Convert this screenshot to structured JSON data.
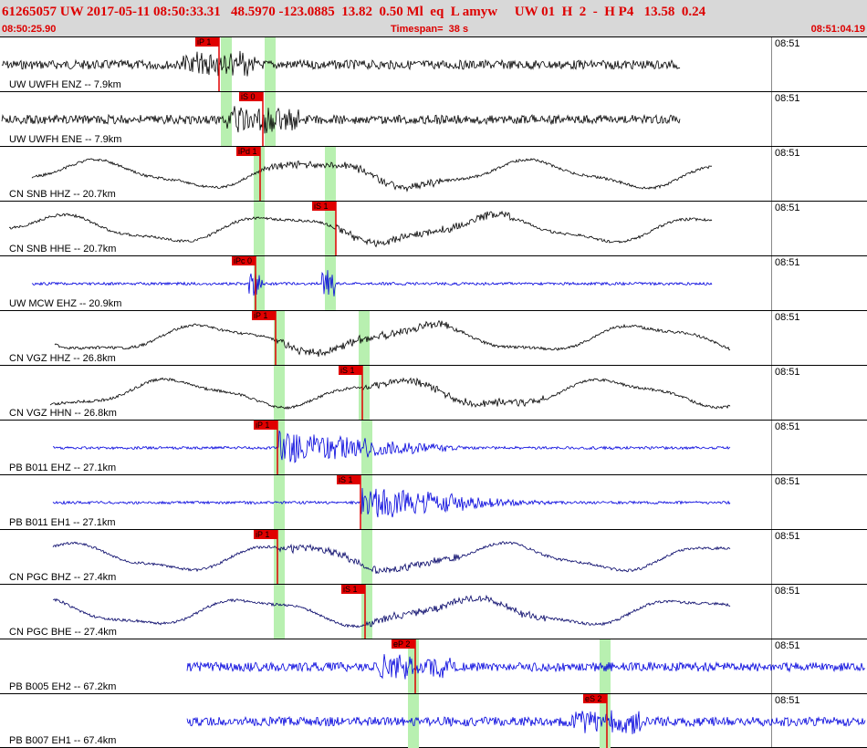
{
  "header": {
    "event_summary": "61265057 UW 2017-05-11 08:50:33.31   48.5970 -123.0885  13.82  0.50 Ml  eq  L amyw     UW 01  H  2  -  H P4   13.58  0.24",
    "start_time": "08:50:25.90",
    "timespan": "Timespan=  38 s",
    "end_time": "08:51:04.19"
  },
  "colors": {
    "header_text": "#dd0000",
    "pick_bg": "#e00000",
    "window_bg": "#b8f0b0",
    "wave_blue": "#0000dd",
    "wave_black": "#000000"
  },
  "traces": [
    {
      "label": "UW UWFH ENZ -- 7.9km",
      "time": "08:51",
      "color": "#000000",
      "kind": "noise",
      "pick": "iP 1"
    },
    {
      "label": "UW UWFH ENE -- 7.9km",
      "time": "08:51",
      "color": "#000000",
      "kind": "noise",
      "pick": "iS 0"
    },
    {
      "label": "CN SNB HHZ -- 20.7km",
      "time": "08:51",
      "color": "#000000",
      "kind": "wave",
      "pick": "iPd 1"
    },
    {
      "label": "CN SNB HHE -- 20.7km",
      "time": "08:51",
      "color": "#000000",
      "kind": "wave",
      "pick": "iS 1"
    },
    {
      "label": "UW MCW EHZ -- 20.9km",
      "time": "08:51",
      "color": "#0000dd",
      "kind": "flat",
      "pick": "iPc 0"
    },
    {
      "label": "CN VGZ HHZ -- 26.8km",
      "time": "08:51",
      "color": "#000000",
      "kind": "wave",
      "pick": "iP 1"
    },
    {
      "label": "CN VGZ HHN -- 26.8km",
      "time": "08:51",
      "color": "#000000",
      "kind": "wave",
      "pick": "iS 1"
    },
    {
      "label": "PB B011 EHZ -- 27.1km",
      "time": "08:51",
      "color": "#0000dd",
      "kind": "burst",
      "pick": "iP 1"
    },
    {
      "label": "PB B011 EH1 -- 27.1km",
      "time": "08:51",
      "color": "#0000dd",
      "kind": "burst",
      "pick": "iS 1"
    },
    {
      "label": "CN PGC BHZ -- 27.4km",
      "time": "08:51",
      "color": "#000066",
      "kind": "wave",
      "pick": "iP 1"
    },
    {
      "label": "CN PGC BHE -- 27.4km",
      "time": "08:51",
      "color": "#000066",
      "kind": "wave",
      "pick": "iS 1"
    },
    {
      "label": "PB B005 EH2 -- 67.2km",
      "time": "08:51",
      "color": "#0000dd",
      "kind": "noise",
      "pick": "eP 2"
    },
    {
      "label": "PB B007 EH1 -- 67.4km",
      "time": "08:51",
      "color": "#0000dd",
      "kind": "noise",
      "pick": "eS 2"
    }
  ]
}
